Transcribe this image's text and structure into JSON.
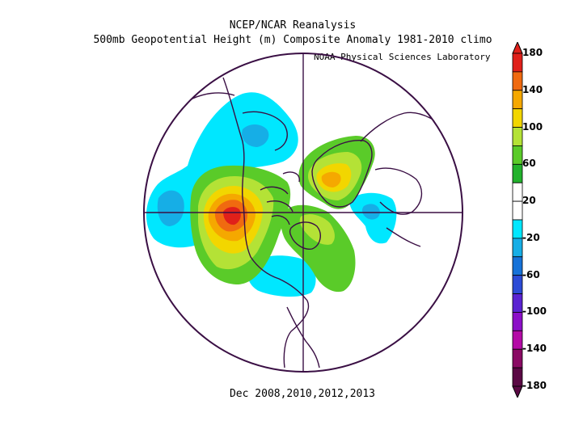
{
  "header": {
    "title_line1": "NCEP/NCAR Reanalysis",
    "title_line2": "500mb Geopotential Height (m) Composite Anomaly 1981-2010 climo",
    "credit": "NOAA Physical Sciences Laboratory"
  },
  "footer": {
    "dates": "Dec 2008,2010,2012,2013"
  },
  "map": {
    "projection": "north-polar-stereographic",
    "variable": "500mb geopotential height anomaly",
    "units": "m"
  },
  "colorbar": {
    "labels": [
      "180",
      "140",
      "100",
      "60",
      "20",
      "-20",
      "-60",
      "-100",
      "-140",
      "-180"
    ],
    "colors": [
      "#7a0032",
      "#e0201a",
      "#f06a10",
      "#f5a800",
      "#f2d600",
      "#b4e236",
      "#5acb29",
      "#22b22c",
      "#ffffff",
      "#ffffff",
      "#00e7ff",
      "#16aee6",
      "#1672d8",
      "#2c4bd6",
      "#5a23d2",
      "#8c0fc8",
      "#b40aa6",
      "#8a0a64",
      "#5a0844"
    ]
  }
}
